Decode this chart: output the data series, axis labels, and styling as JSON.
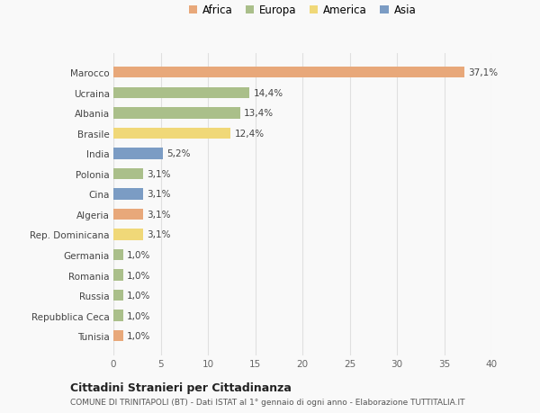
{
  "countries": [
    "Tunisia",
    "Repubblica Ceca",
    "Russia",
    "Romania",
    "Germania",
    "Rep. Dominicana",
    "Algeria",
    "Cina",
    "Polonia",
    "India",
    "Brasile",
    "Albania",
    "Ucraina",
    "Marocco"
  ],
  "values": [
    1.0,
    1.0,
    1.0,
    1.0,
    1.0,
    3.1,
    3.1,
    3.1,
    3.1,
    5.2,
    12.4,
    13.4,
    14.4,
    37.1
  ],
  "labels": [
    "1,0%",
    "1,0%",
    "1,0%",
    "1,0%",
    "1,0%",
    "3,1%",
    "3,1%",
    "3,1%",
    "3,1%",
    "5,2%",
    "12,4%",
    "13,4%",
    "14,4%",
    "37,1%"
  ],
  "continents": [
    "Africa",
    "Europa",
    "Europa",
    "Europa",
    "Europa",
    "America",
    "Africa",
    "Asia",
    "Europa",
    "Asia",
    "America",
    "Europa",
    "Europa",
    "Africa"
  ],
  "colors": {
    "Africa": "#E8A87A",
    "Europa": "#AABF8A",
    "America": "#F0D878",
    "Asia": "#7B9CC4"
  },
  "legend_order": [
    "Africa",
    "Europa",
    "America",
    "Asia"
  ],
  "xlim": [
    0,
    40
  ],
  "xticks": [
    0,
    5,
    10,
    15,
    20,
    25,
    30,
    35,
    40
  ],
  "title1": "Cittadini Stranieri per Cittadinanza",
  "title2": "COMUNE DI TRINITAPOLI (BT) - Dati ISTAT al 1° gennaio di ogni anno - Elaborazione TUTTITALIA.IT",
  "bg_color": "#F9F9F9",
  "bar_height": 0.55,
  "grid_color": "#E0E0E0",
  "label_fontsize": 7.5,
  "ytick_fontsize": 7.5,
  "xtick_fontsize": 7.5
}
